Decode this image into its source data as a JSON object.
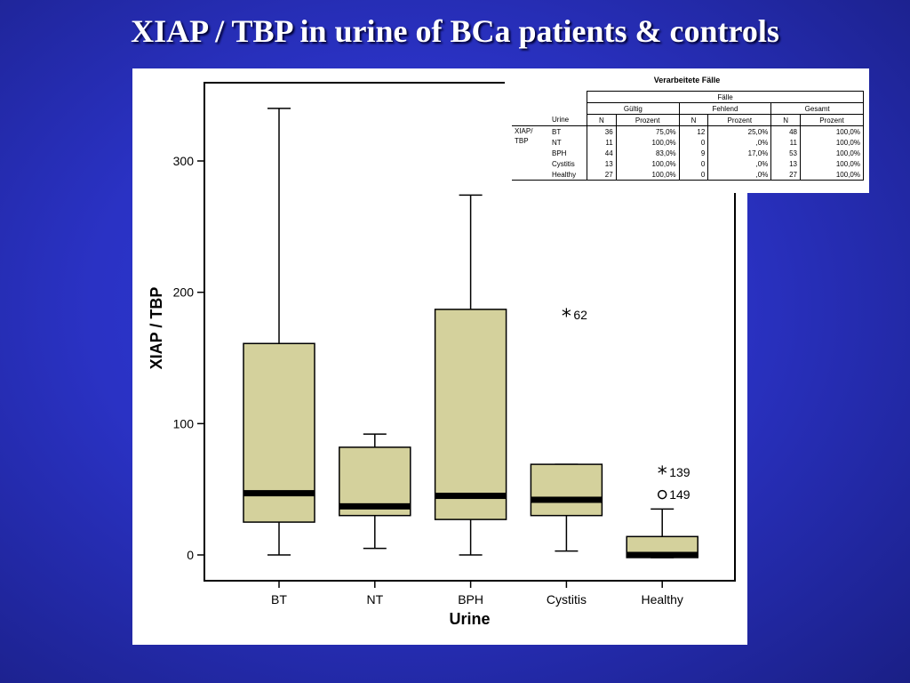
{
  "slide": {
    "title": "XIAP / TBP in urine of BCa patients & controls"
  },
  "chart_data": {
    "type": "boxplot",
    "xlabel": "Urine",
    "ylabel": "XIAP / TBP",
    "categories": [
      "BT",
      "NT",
      "BPH",
      "Cystitis",
      "Healthy"
    ],
    "yticks": [
      0,
      100,
      200,
      300
    ],
    "ylim": [
      -20,
      360
    ],
    "box_fill": "#d4d19c",
    "boxes": [
      {
        "category": "BT",
        "min": 0,
        "q1": 25,
        "median": 47,
        "q3": 161,
        "max": 340
      },
      {
        "category": "NT",
        "min": 5,
        "q1": 30,
        "median": 37,
        "q3": 82,
        "max": 92
      },
      {
        "category": "BPH",
        "min": 0,
        "q1": 27,
        "median": 45,
        "q3": 187,
        "max": 274
      },
      {
        "category": "Cystitis",
        "min": 3,
        "q1": 30,
        "median": 42,
        "q3": 69,
        "max": 69
      },
      {
        "category": "Healthy",
        "min": -2,
        "q1": -2,
        "median": 0,
        "q3": 14,
        "max": 35
      }
    ],
    "outliers": [
      {
        "category": "Cystitis",
        "value": 183,
        "marker": "*",
        "label": "62"
      },
      {
        "category": "Healthy",
        "value": 63,
        "marker": "*",
        "label": "139"
      },
      {
        "category": "Healthy",
        "value": 46,
        "marker": "o",
        "label": "149"
      }
    ]
  },
  "case_table": {
    "title": "Verarbeitete Fälle",
    "group_header": "Fälle",
    "col_groups": [
      "Gültig",
      "Fehlend",
      "Gesamt"
    ],
    "row_var": "Urine",
    "sub_headers": [
      "N",
      "Prozent",
      "N",
      "Prozent",
      "N",
      "Prozent"
    ],
    "variable": "XIAP/ TBP",
    "rows": [
      {
        "label": "BT",
        "cells": [
          "36",
          "75,0%",
          "12",
          "25,0%",
          "48",
          "100,0%"
        ]
      },
      {
        "label": "NT",
        "cells": [
          "11",
          "100,0%",
          "0",
          ",0%",
          "11",
          "100,0%"
        ]
      },
      {
        "label": "BPH",
        "cells": [
          "44",
          "83,0%",
          "9",
          "17,0%",
          "53",
          "100,0%"
        ]
      },
      {
        "label": "Cystitis",
        "cells": [
          "13",
          "100,0%",
          "0",
          ",0%",
          "13",
          "100,0%"
        ]
      },
      {
        "label": "Healthy",
        "cells": [
          "27",
          "100,0%",
          "0",
          ",0%",
          "27",
          "100,0%"
        ]
      }
    ]
  }
}
